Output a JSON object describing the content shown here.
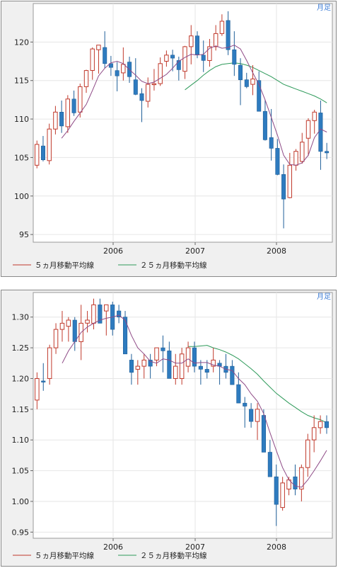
{
  "charts": [
    {
      "period_label": "月足",
      "legend": [
        "５ヵ月移動平均線",
        "２５ヵ月移動平均線"
      ],
      "colors": {
        "up": "#c0392b",
        "down": "#2e7bbf",
        "ma5": "#c0392b",
        "ma25": "#2e9a5a"
      },
      "chart_data": {
        "type": "candlestick",
        "x_tick_labels": [
          "2006",
          "2007",
          "2008"
        ],
        "y_ticks": [
          95,
          100,
          105,
          110,
          115,
          120
        ],
        "ylim": [
          94,
          125
        ],
        "candles": [
          [
            104.0,
            107.2,
            103.6,
            106.7
          ],
          [
            106.5,
            107.8,
            104.5,
            104.7
          ],
          [
            104.6,
            109.4,
            104.1,
            108.7
          ],
          [
            108.7,
            111.7,
            108.0,
            110.9
          ],
          [
            110.9,
            112.4,
            108.2,
            109.1
          ],
          [
            109.0,
            113.1,
            108.2,
            112.6
          ],
          [
            112.6,
            113.7,
            110.4,
            110.8
          ],
          [
            110.9,
            114.6,
            110.2,
            114.2
          ],
          [
            114.2,
            116.4,
            113.4,
            116.3
          ],
          [
            116.3,
            119.3,
            115.1,
            119.1
          ],
          [
            119.0,
            119.4,
            115.9,
            119.6
          ],
          [
            119.3,
            121.4,
            116.6,
            117.2
          ],
          [
            117.2,
            118.2,
            115.6,
            116.7
          ],
          [
            116.3,
            117.4,
            113.6,
            115.6
          ],
          [
            116.0,
            119.3,
            115.0,
            117.1
          ],
          [
            117.4,
            118.1,
            114.7,
            115.5
          ],
          [
            115.1,
            117.9,
            113.1,
            113.2
          ],
          [
            113.3,
            114.0,
            109.6,
            112.4
          ],
          [
            112.3,
            115.4,
            111.5,
            114.5
          ],
          [
            114.5,
            116.5,
            113.7,
            114.6
          ],
          [
            114.6,
            118.0,
            114.3,
            117.2
          ],
          [
            117.5,
            118.9,
            116.8,
            118.3
          ],
          [
            118.3,
            119.0,
            116.2,
            117.9
          ],
          [
            117.6,
            118.1,
            115.0,
            116.4
          ],
          [
            116.2,
            119.5,
            115.2,
            119.4
          ],
          [
            119.4,
            122.2,
            117.1,
            120.8
          ],
          [
            120.8,
            121.4,
            117.9,
            118.4
          ],
          [
            118.3,
            120.2,
            116.1,
            117.6
          ],
          [
            117.6,
            120.4,
            116.8,
            119.4
          ],
          [
            119.4,
            122.2,
            118.9,
            121.1
          ],
          [
            121.1,
            123.6,
            120.8,
            122.7
          ],
          [
            122.8,
            124.0,
            118.3,
            119.0
          ],
          [
            119.0,
            121.4,
            115.6,
            117.1
          ],
          [
            117.0,
            117.9,
            111.8,
            115.1
          ],
          [
            115.1,
            116.0,
            114.0,
            114.2
          ],
          [
            114.5,
            117.0,
            113.1,
            115.2
          ],
          [
            115.0,
            116.2,
            111.0,
            111.0
          ],
          [
            111.0,
            112.5,
            107.2,
            107.3
          ],
          [
            107.6,
            111.3,
            104.6,
            106.2
          ],
          [
            106.2,
            107.4,
            102.7,
            102.8
          ],
          [
            102.8,
            104.1,
            95.8,
            99.6
          ],
          [
            99.8,
            105.6,
            99.7,
            104.0
          ],
          [
            104.0,
            106.1,
            103.3,
            105.8
          ],
          [
            104.5,
            108.2,
            104.2,
            107.0
          ],
          [
            107.5,
            110.1,
            105.2,
            109.8
          ],
          [
            109.8,
            111.2,
            108.1,
            110.9
          ],
          [
            110.8,
            112.4,
            103.4,
            105.8
          ],
          [
            105.8,
            106.9,
            104.8,
            105.6
          ]
        ],
        "ma5": [
          null,
          null,
          null,
          null,
          107.5,
          108.5,
          109.7,
          110.8,
          111.9,
          113.7,
          115.6,
          116.6,
          117.3,
          117.5,
          117.2,
          116.4,
          115.7,
          114.9,
          114.6,
          114.8,
          115.3,
          115.8,
          116.6,
          117.5,
          118.0,
          118.4,
          118.3,
          118.4,
          119.2,
          119.5,
          119.2,
          119.3,
          119.6,
          119.1,
          117.6,
          116.0,
          114.5,
          112.5,
          110.2,
          107.9,
          105.3,
          104.1,
          104.0,
          104.3,
          105.3,
          107.6,
          108.7,
          108.3
        ],
        "ma25": [
          null,
          null,
          null,
          null,
          null,
          null,
          null,
          null,
          null,
          null,
          null,
          null,
          null,
          null,
          null,
          null,
          null,
          null,
          null,
          null,
          null,
          null,
          null,
          null,
          113.8,
          114.4,
          115.0,
          115.7,
          116.3,
          116.8,
          117.1,
          117.2,
          117.3,
          117.2,
          117.0,
          116.7,
          116.3,
          115.9,
          115.5,
          115.0,
          114.5,
          114.2,
          113.9,
          113.6,
          113.3,
          113.0,
          112.6,
          112.1
        ]
      }
    },
    {
      "period_label": "月足",
      "legend": [
        "５ヵ月移動平均線",
        "２５ヵ月移動平均線"
      ],
      "colors": {
        "up": "#c0392b",
        "down": "#2e7bbf",
        "ma5": "#c0392b",
        "ma25": "#2e9a5a"
      },
      "chart_data": {
        "type": "candlestick",
        "x_tick_labels": [
          "2006",
          "2007",
          "2008"
        ],
        "y_ticks": [
          0.95,
          1.0,
          1.05,
          1.1,
          1.15,
          1.2,
          1.25,
          1.3
        ],
        "ylim": [
          0.94,
          1.34
        ],
        "candles": [
          [
            1.165,
            1.21,
            1.15,
            1.2
          ],
          [
            1.196,
            1.225,
            1.18,
            1.194
          ],
          [
            1.2,
            1.255,
            1.19,
            1.25
          ],
          [
            1.25,
            1.29,
            1.24,
            1.28
          ],
          [
            1.28,
            1.31,
            1.26,
            1.29
          ],
          [
            1.285,
            1.3,
            1.26,
            1.295
          ],
          [
            1.295,
            1.3,
            1.245,
            1.26
          ],
          [
            1.26,
            1.32,
            1.23,
            1.29
          ],
          [
            1.29,
            1.31,
            1.275,
            1.295
          ],
          [
            1.29,
            1.33,
            1.28,
            1.32
          ],
          [
            1.32,
            1.33,
            1.29,
            1.29
          ],
          [
            1.31,
            1.32,
            1.27,
            1.32
          ],
          [
            1.32,
            1.325,
            1.27,
            1.28
          ],
          [
            1.31,
            1.32,
            1.29,
            1.3
          ],
          [
            1.3,
            1.31,
            1.24,
            1.24
          ],
          [
            1.23,
            1.24,
            1.19,
            1.21
          ],
          [
            1.215,
            1.23,
            1.19,
            1.22
          ],
          [
            1.22,
            1.24,
            1.2,
            1.23
          ],
          [
            1.23,
            1.24,
            1.2,
            1.22
          ],
          [
            1.23,
            1.25,
            1.22,
            1.25
          ],
          [
            1.25,
            1.27,
            1.21,
            1.245
          ],
          [
            1.245,
            1.26,
            1.2,
            1.2
          ],
          [
            1.2,
            1.24,
            1.19,
            1.22
          ],
          [
            1.2,
            1.25,
            1.19,
            1.24
          ],
          [
            1.22,
            1.26,
            1.21,
            1.25
          ],
          [
            1.25,
            1.26,
            1.21,
            1.22
          ],
          [
            1.22,
            1.23,
            1.19,
            1.215
          ],
          [
            1.215,
            1.23,
            1.2,
            1.21
          ],
          [
            1.22,
            1.25,
            1.21,
            1.23
          ],
          [
            1.225,
            1.23,
            1.19,
            1.22
          ],
          [
            1.22,
            1.24,
            1.2,
            1.21
          ],
          [
            1.22,
            1.23,
            1.19,
            1.19
          ],
          [
            1.19,
            1.21,
            1.16,
            1.16
          ],
          [
            1.16,
            1.17,
            1.12,
            1.155
          ],
          [
            1.15,
            1.16,
            1.12,
            1.13
          ],
          [
            1.13,
            1.16,
            1.1,
            1.15
          ],
          [
            1.14,
            1.15,
            1.08,
            1.08
          ],
          [
            1.08,
            1.1,
            1.04,
            1.04
          ],
          [
            1.04,
            1.06,
            0.96,
            0.995
          ],
          [
            0.99,
            1.04,
            0.985,
            1.03
          ],
          [
            1.02,
            1.04,
            1.01,
            1.035
          ],
          [
            1.04,
            1.06,
            1.01,
            1.02
          ],
          [
            1.02,
            1.06,
            1.0,
            1.055
          ],
          [
            1.055,
            1.11,
            1.04,
            1.1
          ],
          [
            1.1,
            1.14,
            1.08,
            1.12
          ],
          [
            1.12,
            1.14,
            1.11,
            1.13
          ],
          [
            1.13,
            1.14,
            1.11,
            1.12
          ]
        ],
        "ma5": [
          null,
          null,
          null,
          null,
          1.225,
          1.245,
          1.26,
          1.275,
          1.284,
          1.29,
          1.295,
          1.298,
          1.3,
          1.303,
          1.295,
          1.27,
          1.25,
          1.24,
          1.228,
          1.225,
          1.232,
          1.23,
          1.225,
          1.225,
          1.232,
          1.225,
          1.226,
          1.226,
          1.222,
          1.22,
          1.215,
          1.213,
          1.2,
          1.19,
          1.175,
          1.163,
          1.143,
          1.112,
          1.083,
          1.055,
          1.035,
          1.025,
          1.023,
          1.035,
          1.05,
          1.066,
          1.083
        ],
        "ma25": [
          null,
          null,
          null,
          null,
          null,
          null,
          null,
          null,
          null,
          null,
          null,
          null,
          null,
          null,
          null,
          null,
          null,
          null,
          null,
          null,
          null,
          null,
          null,
          null,
          1.252,
          1.252,
          1.253,
          1.254,
          1.25,
          1.247,
          1.243,
          1.238,
          1.232,
          1.224,
          1.216,
          1.207,
          1.196,
          1.186,
          1.176,
          1.168,
          1.16,
          1.153,
          1.146,
          1.14,
          1.136,
          1.133,
          1.128
        ]
      }
    }
  ]
}
